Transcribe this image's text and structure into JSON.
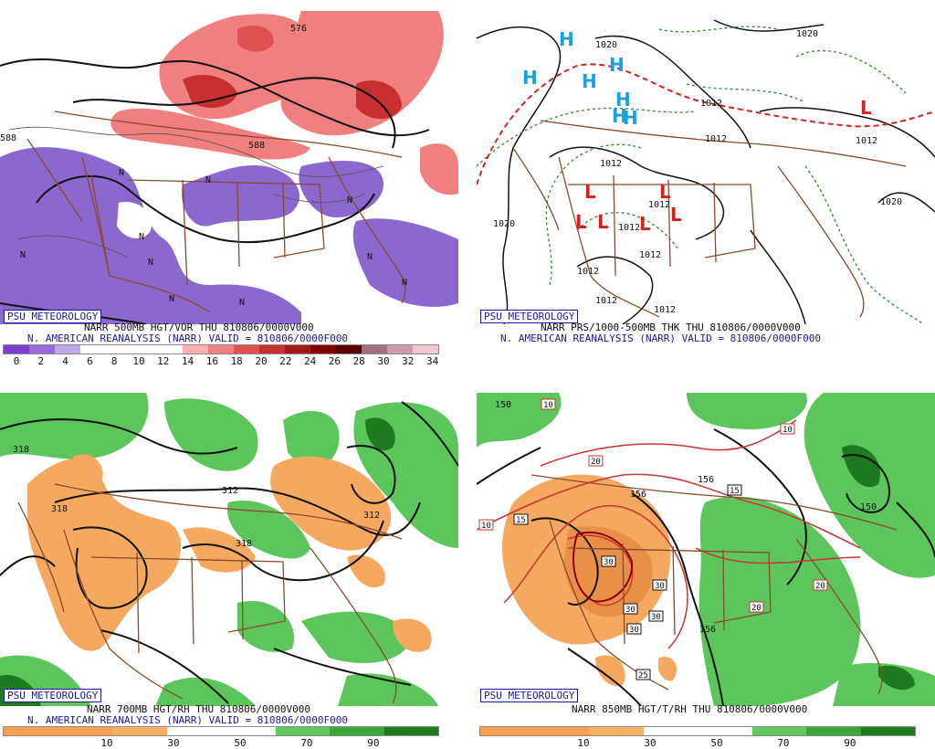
{
  "panels": [
    {
      "badge": "PSU METEOROLOGY",
      "title_line1": "NARR 500MB HGT/VOR THU 810806/0000V000",
      "title_line2": "N. AMERICAN REANALYSIS (NARR) VALID = 810806/0000F000",
      "colorbar_colors": [
        "#7a3fd0",
        "#9a6ad8",
        "#c0a8e8",
        "#ffffff",
        "#ffffff",
        "#ffffff",
        "#ffffff",
        "#ffb0b0",
        "#f08080",
        "#e05050",
        "#c83030",
        "#a01818",
        "#800000",
        "#5a0000",
        "#a07080",
        "#d09aa8",
        "#f0c8d0"
      ],
      "colorbar_ticks": [
        "0",
        "2",
        "4",
        "6",
        "8",
        "10",
        "12",
        "14",
        "16",
        "18",
        "20",
        "22",
        "24",
        "26",
        "28",
        "30",
        "32",
        "34"
      ],
      "map_labels": [
        "588",
        "576",
        "588",
        "N",
        "N",
        "N",
        "N",
        "N",
        "N",
        "N",
        "N",
        "N",
        "N"
      ]
    },
    {
      "badge": "PSU METEOROLOGY",
      "title_line1": "NARR PRS/1000-500MB THK THU 810806/0000V000",
      "title_line2": "N. AMERICAN REANALYSIS (NARR) VALID = 810806/0000F000",
      "map_labels": [
        "1020",
        "1020",
        "1012",
        "1012",
        "1012",
        "1012",
        "1020",
        "1012",
        "1012",
        "1012",
        "1012",
        "1020",
        "1012",
        "1012"
      ],
      "highs": [
        "H",
        "H",
        "H",
        "H",
        "H",
        "H",
        "H"
      ],
      "lows": [
        "L",
        "L",
        "L",
        "L",
        "L",
        "L",
        "L"
      ]
    },
    {
      "badge": "PSU METEOROLOGY",
      "title_line1": "NARR 700MB HGT/RH THU 810806/0000V000",
      "title_line2": "N. AMERICAN REANALYSIS (NARR) VALID = 810806/0000F000",
      "colorbar_colors": [
        "#f4a050",
        "#f4a050",
        "#f4b060",
        "#ffffff",
        "#ffffff",
        "#60c860",
        "#38a838",
        "#1e7a1e"
      ],
      "colorbar_ticks": [
        "10",
        "30",
        "50",
        "70",
        "90"
      ],
      "map_labels": [
        "318",
        "318",
        "312",
        "318",
        "312"
      ]
    },
    {
      "badge": "PSU METEOROLOGY",
      "title_line1": "NARR 850MB HGT/T/RH THU 810806/0000V000",
      "colorbar_colors": [
        "#f4a050",
        "#f4a050",
        "#f4b060",
        "#ffffff",
        "#ffffff",
        "#60c860",
        "#38a838",
        "#1e7a1e"
      ],
      "colorbar_ticks": [
        "10",
        "30",
        "50",
        "70",
        "90"
      ],
      "map_labels": [
        "150",
        "156",
        "156",
        "150",
        "156"
      ],
      "temp_boxes": [
        "10",
        "20",
        "10",
        "15",
        "15",
        "30",
        "30",
        "30",
        "30",
        "30",
        "25",
        "20",
        "20",
        "10"
      ]
    }
  ]
}
